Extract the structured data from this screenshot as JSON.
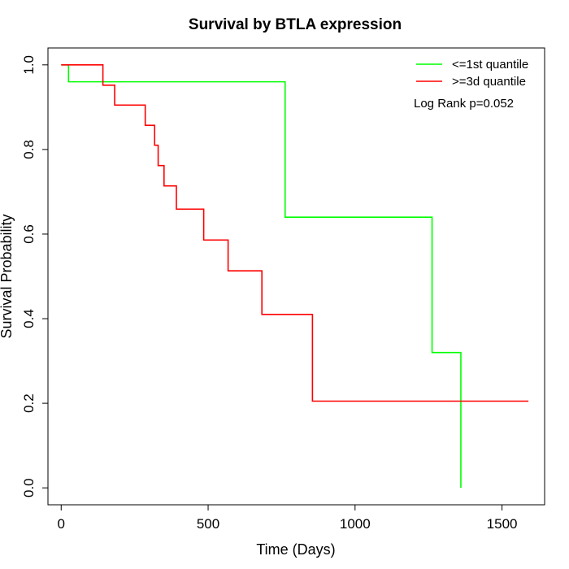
{
  "chart_data": {
    "type": "line",
    "title": "Survival by BTLA expression",
    "xlabel": "Time (Days)",
    "ylabel": "Survival Probability",
    "xlim": [
      -45,
      1645
    ],
    "ylim": [
      -0.04,
      1.04
    ],
    "x_ticks": [
      0,
      500,
      1000,
      1500
    ],
    "y_ticks": [
      0.0,
      0.2,
      0.4,
      0.6,
      0.8,
      1.0
    ],
    "x_tick_labels": [
      "0",
      "500",
      "1000",
      "1500"
    ],
    "y_tick_labels": [
      "0.0",
      "0.2",
      "0.4",
      "0.6",
      "0.8",
      "1.0"
    ],
    "grid": false,
    "legend_position": "top-right",
    "annotation": "Log Rank p=0.052",
    "series": [
      {
        "name": "<=1st quantile",
        "color": "#00ff00",
        "steps": [
          [
            0,
            1.0
          ],
          [
            25,
            0.96
          ],
          [
            762,
            0.64
          ],
          [
            1262,
            0.32
          ],
          [
            1360,
            0.0
          ]
        ],
        "end_x": 1360
      },
      {
        "name": ">=3d quantile",
        "color": "#ff0000",
        "steps": [
          [
            0,
            1.0
          ],
          [
            142,
            0.952
          ],
          [
            182,
            0.905
          ],
          [
            286,
            0.857
          ],
          [
            318,
            0.81
          ],
          [
            330,
            0.762
          ],
          [
            350,
            0.714
          ],
          [
            392,
            0.659
          ],
          [
            485,
            0.586
          ],
          [
            568,
            0.513
          ],
          [
            683,
            0.41
          ],
          [
            855,
            0.205
          ]
        ],
        "end_x": 1590
      }
    ]
  }
}
